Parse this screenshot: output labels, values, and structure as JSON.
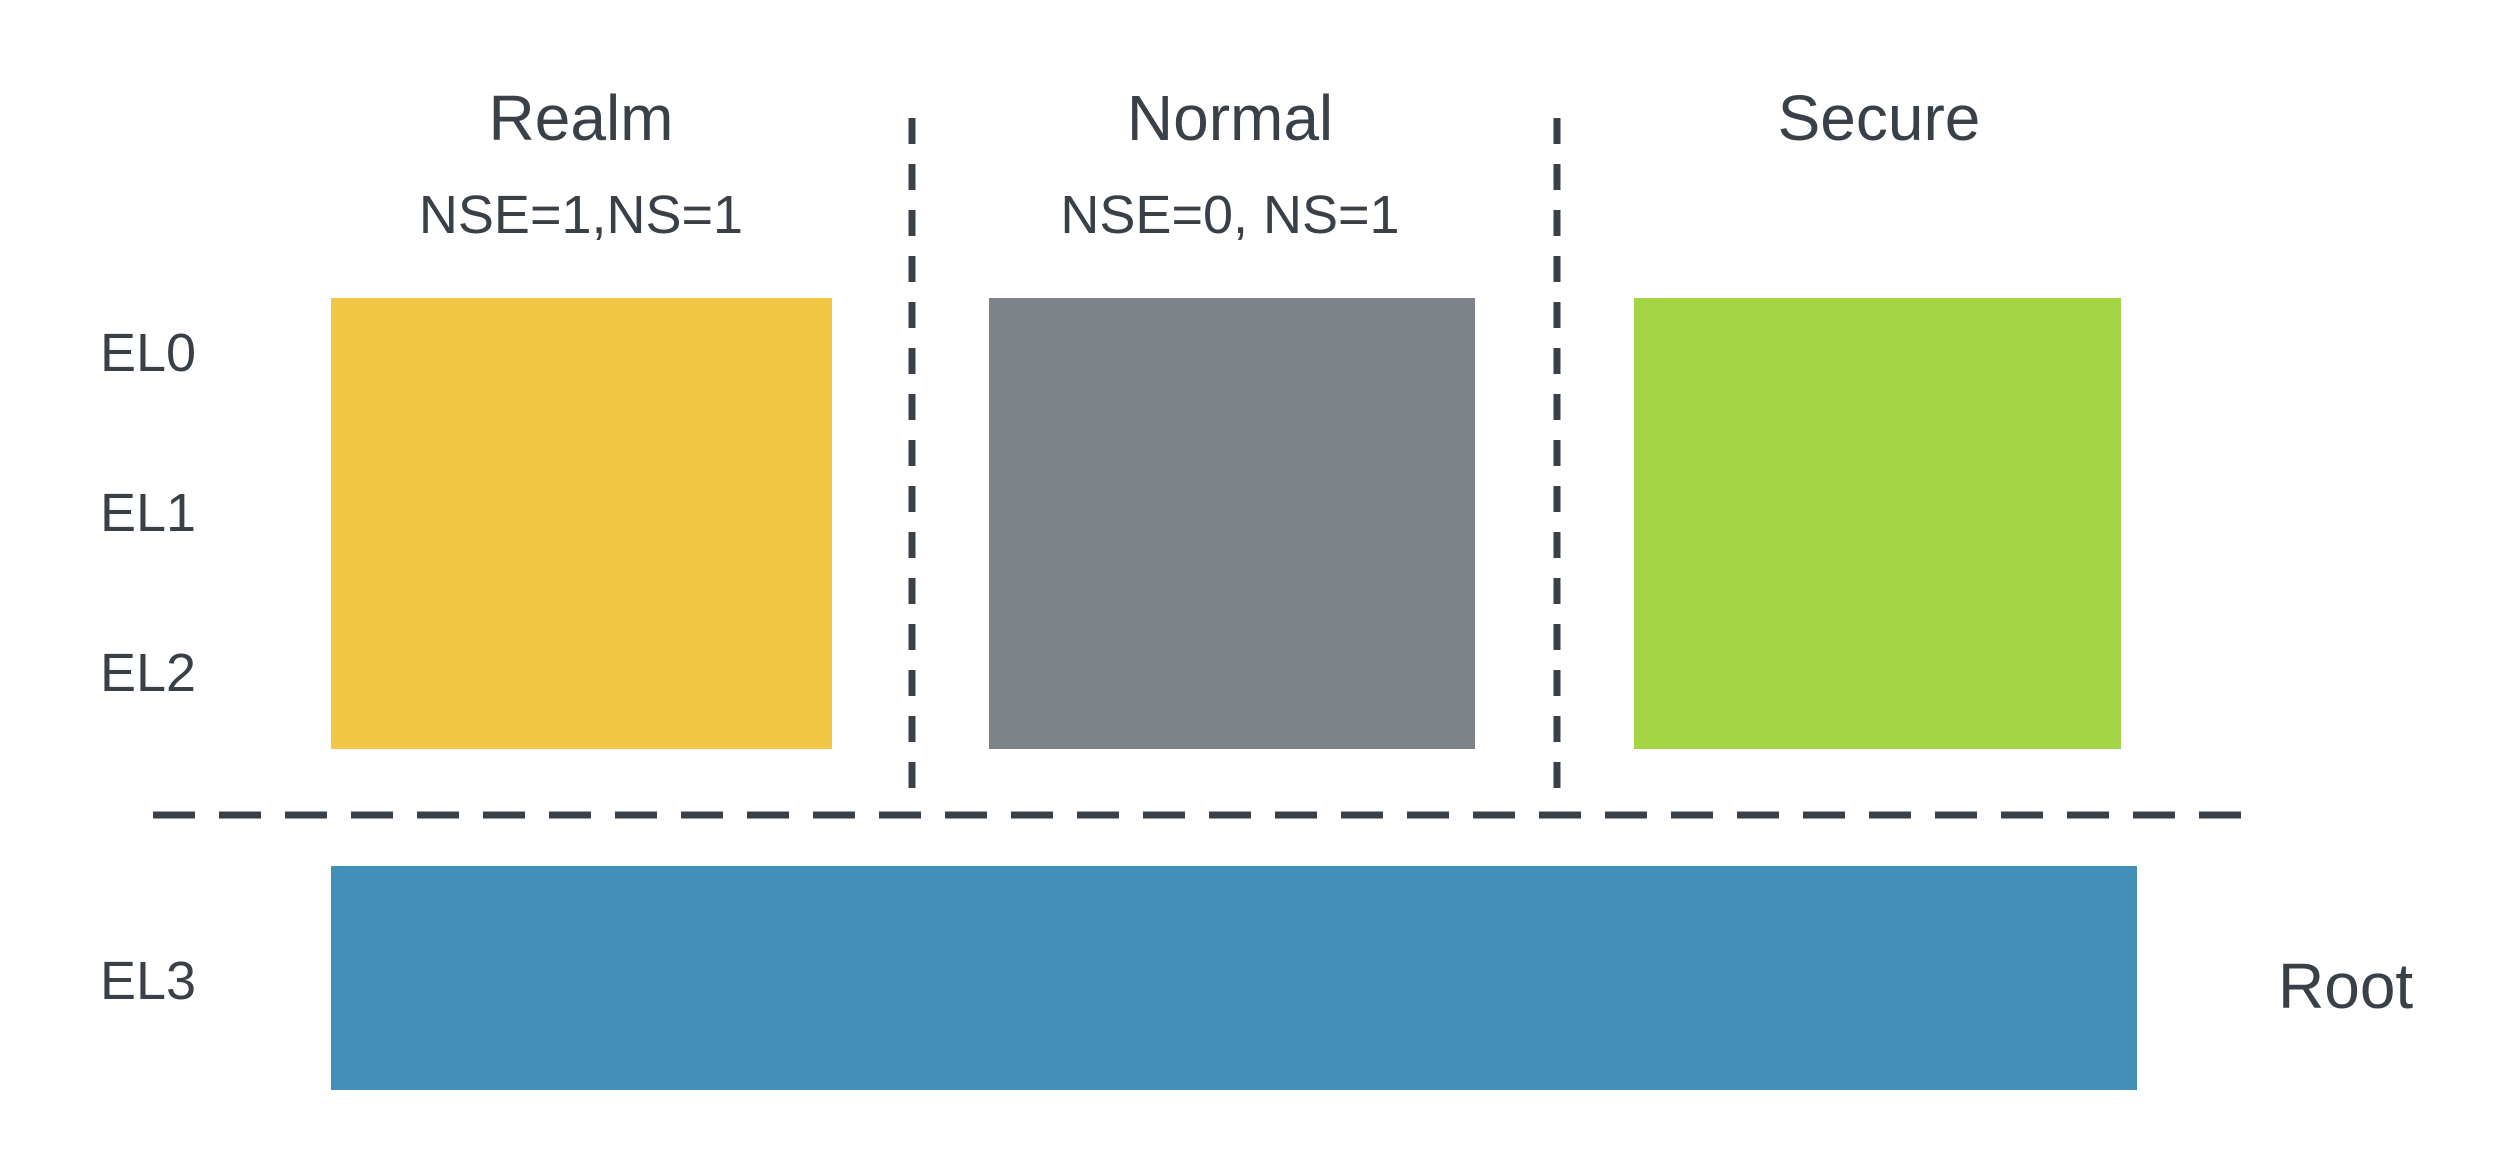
{
  "worlds": [
    {
      "title": "Realm",
      "subtitle": "NSE=1,NS=1",
      "color": "#f2c744"
    },
    {
      "title": "Normal",
      "subtitle": "NSE=0, NS=1",
      "color": "#7d8389"
    },
    {
      "title": "Secure",
      "subtitle": "",
      "color": "#a3d544"
    }
  ],
  "exception_levels": [
    "EL0",
    "EL1",
    "EL2",
    "EL3"
  ],
  "root": {
    "label": "Root",
    "color": "#428fb8"
  },
  "divider_color": "#3a4048"
}
